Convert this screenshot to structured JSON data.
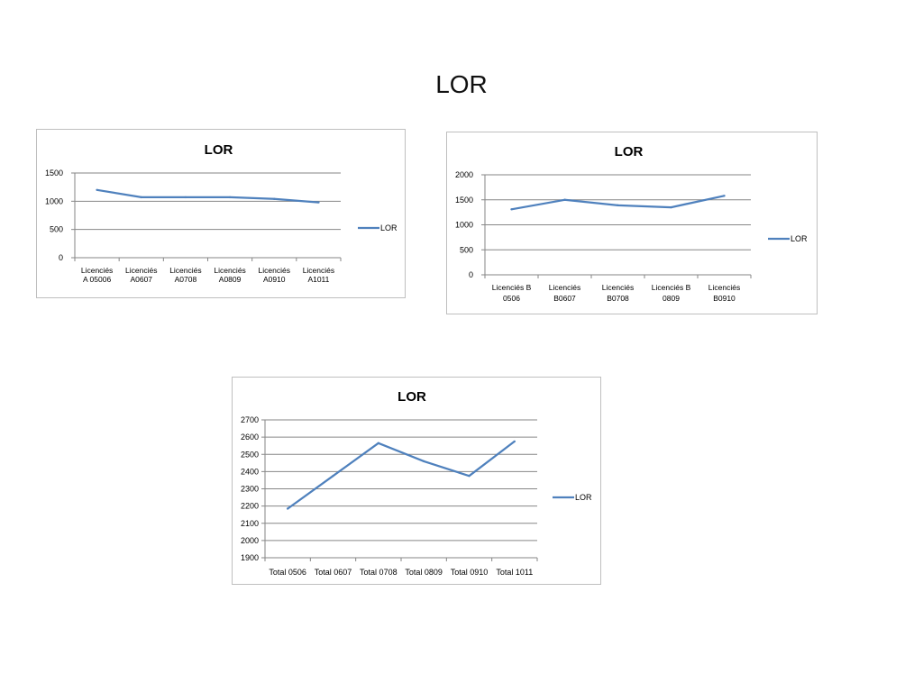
{
  "slide": {
    "title": "LOR"
  },
  "chart_data": [
    {
      "type": "line",
      "title": "LOR",
      "categories": [
        [
          "Licenciés",
          "A 05006"
        ],
        [
          "Licenciés",
          "A0607"
        ],
        [
          "Licenciés",
          "A0708"
        ],
        [
          "Licenciés",
          "A0809"
        ],
        [
          "Licenciés",
          "A0910"
        ],
        [
          "Licenciés",
          "A1011"
        ]
      ],
      "series": [
        {
          "name": "LOR",
          "values": [
            1200,
            1070,
            1070,
            1070,
            1040,
            980
          ]
        }
      ],
      "ylim": [
        0,
        1500
      ],
      "yticks": [
        0,
        500,
        1000,
        1500
      ],
      "grid": true,
      "legend": "right",
      "colors": {
        "line": "#4f81bd",
        "grid": "#868686",
        "axis": "#868686",
        "frame": "#bfbfbf",
        "text": "#000000"
      }
    },
    {
      "type": "line",
      "title": "LOR",
      "categories": [
        [
          "Licenciés B",
          "0506"
        ],
        [
          "Licenciés",
          "B0607"
        ],
        [
          "Licenciés",
          "B0708"
        ],
        [
          "Licenciés B",
          "0809"
        ],
        [
          "Licenciés",
          "B0910"
        ]
      ],
      "series": [
        {
          "name": "LOR",
          "values": [
            1310,
            1500,
            1390,
            1350,
            1580
          ]
        }
      ],
      "ylim": [
        0,
        2000
      ],
      "yticks": [
        0,
        500,
        1000,
        1500,
        2000
      ],
      "grid": true,
      "legend": "right",
      "colors": {
        "line": "#4f81bd",
        "grid": "#868686",
        "axis": "#868686",
        "frame": "#bfbfbf",
        "text": "#000000"
      }
    },
    {
      "type": "line",
      "title": "LOR",
      "categories": [
        [
          "Total 0506"
        ],
        [
          "Total 0607"
        ],
        [
          "Total 0708"
        ],
        [
          "Total 0809"
        ],
        [
          "Total 0910"
        ],
        [
          "Total 1011"
        ]
      ],
      "series": [
        {
          "name": "LOR",
          "values": [
            2185,
            2375,
            2565,
            2460,
            2375,
            2575
          ]
        }
      ],
      "ylim": [
        1900,
        2700
      ],
      "yticks": [
        1900,
        2000,
        2100,
        2200,
        2300,
        2400,
        2500,
        2600,
        2700
      ],
      "grid": true,
      "legend": "right",
      "colors": {
        "line": "#4f81bd",
        "grid": "#868686",
        "axis": "#868686",
        "frame": "#bfbfbf",
        "text": "#000000"
      }
    }
  ]
}
